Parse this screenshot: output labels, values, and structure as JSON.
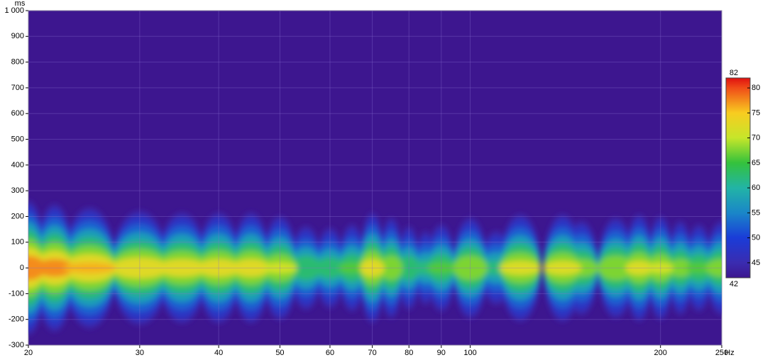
{
  "chart_data": {
    "type": "spectrogram",
    "x_unit": "Hz",
    "y_unit": "ms",
    "xlim": [
      20,
      250
    ],
    "xticks": [
      20,
      30,
      40,
      50,
      60,
      70,
      80,
      90,
      100,
      200,
      250
    ],
    "x_log": true,
    "ylim": [
      -300,
      1000
    ],
    "yticks": [
      -300,
      -200,
      -100,
      0,
      100,
      200,
      300,
      400,
      500,
      600,
      700,
      800,
      {
        "value": 1000,
        "label": "1 000"
      },
      900
    ],
    "grid": true,
    "background": "#3d168f",
    "zlim": [
      42,
      82
    ],
    "zticks": [
      45,
      50,
      55,
      60,
      65,
      70,
      75,
      80
    ],
    "colorscale": [
      [
        42,
        "#3d168f"
      ],
      [
        45,
        "#3a2cb0"
      ],
      [
        50,
        "#1a3cd8"
      ],
      [
        55,
        "#1a86c8"
      ],
      [
        60,
        "#22b4a6"
      ],
      [
        65,
        "#34c23c"
      ],
      [
        70,
        "#c6e62a"
      ],
      [
        75,
        "#f8cc20"
      ],
      [
        80,
        "#f04c18"
      ],
      [
        82,
        "#e01010"
      ]
    ],
    "x": [
      20,
      22,
      25,
      30,
      35,
      40,
      45,
      50,
      55,
      60,
      65,
      70,
      75,
      80,
      85,
      90,
      100,
      110,
      120,
      140,
      150,
      170,
      185,
      200,
      215,
      230,
      250
    ],
    "values": [
      80,
      78,
      76,
      74,
      73,
      73,
      73,
      71,
      65,
      64,
      66,
      73,
      70,
      65,
      62,
      66,
      70,
      62,
      72,
      72,
      68,
      70,
      72,
      71,
      68,
      66,
      68
    ]
  }
}
